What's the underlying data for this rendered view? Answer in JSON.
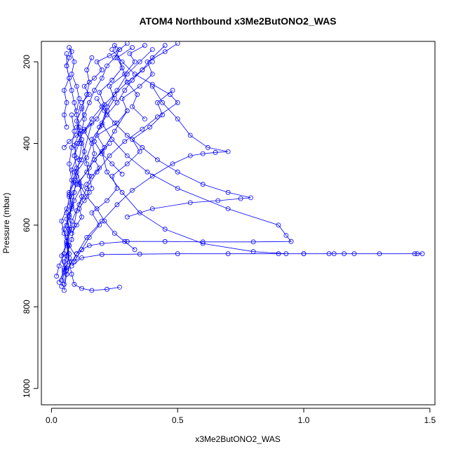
{
  "chart_data": {
    "type": "scatter",
    "title": "ATOM4 Northbound x3Me2ButONO2_WAS",
    "xlabel": "x3Me2ButONO2_WAS",
    "ylabel": "Pressure (mbar)",
    "xlim": [
      -0.04,
      1.52
    ],
    "ylim": [
      1040,
      150
    ],
    "y_reversed": true,
    "x_ticks": [
      0.0,
      0.5,
      1.0,
      1.5
    ],
    "x_tick_labels": [
      "0.0",
      "0.5",
      "1.0",
      "1.5"
    ],
    "y_ticks": [
      200,
      400,
      600,
      800,
      1000
    ],
    "y_tick_labels": [
      "200",
      "400",
      "600",
      "800",
      "1000"
    ],
    "grid": false,
    "colors": {
      "series": "#0000ff",
      "axes": "#000000",
      "background": "#ffffff"
    },
    "series": [
      {
        "profile": 1,
        "x": [
          0.05,
          0.06,
          0.05,
          0.07,
          0.06,
          0.08,
          0.09,
          0.1,
          0.11,
          0.12,
          0.1,
          0.13,
          0.15,
          0.17,
          0.2,
          0.22,
          0.25,
          0.27,
          0.3
        ],
        "y": [
          760,
          720,
          690,
          650,
          600,
          560,
          520,
          480,
          440,
          400,
          360,
          330,
          300,
          270,
          240,
          210,
          190,
          170,
          155
        ]
      },
      {
        "profile": 2,
        "x": [
          0.04,
          0.05,
          0.07,
          0.06,
          0.08,
          0.07,
          0.09,
          0.12,
          0.1,
          0.14,
          0.16,
          0.13,
          0.18,
          0.21,
          0.19,
          0.24,
          0.28,
          0.26,
          0.32
        ],
        "y": [
          750,
          715,
          680,
          640,
          610,
          575,
          540,
          505,
          470,
          435,
          400,
          370,
          340,
          305,
          275,
          245,
          215,
          190,
          165
        ]
      },
      {
        "profile": 3,
        "x": [
          0.03,
          0.05,
          0.06,
          0.08,
          0.09,
          0.1,
          0.12,
          0.11,
          0.15,
          0.17,
          0.16,
          0.2,
          0.22,
          0.25,
          0.23,
          0.29,
          0.33,
          0.31,
          0.37
        ],
        "y": [
          740,
          710,
          675,
          635,
          600,
          565,
          530,
          495,
          460,
          425,
          390,
          355,
          320,
          290,
          260,
          230,
          200,
          180,
          160
        ]
      },
      {
        "profile": 4,
        "x": [
          0.06,
          0.08,
          0.1,
          0.12,
          0.15,
          0.2,
          0.3,
          0.45,
          0.6,
          0.8,
          0.95,
          0.93,
          0.9,
          0.7,
          0.5,
          0.38,
          0.3,
          0.24,
          0.2,
          0.22,
          0.26,
          0.3,
          0.35,
          0.4
        ],
        "y": [
          720,
          690,
          670,
          660,
          650,
          645,
          640,
          640,
          641,
          641,
          640,
          625,
          600,
          560,
          510,
          470,
          430,
          390,
          350,
          310,
          270,
          230,
          200,
          170
        ]
      },
      {
        "profile": 5,
        "x": [
          0.08,
          0.12,
          0.2,
          0.35,
          0.5,
          0.7,
          0.9,
          1.0,
          1.1,
          1.2,
          1.3,
          1.45,
          1.47,
          1.44,
          1.16,
          1.12,
          1.0,
          0.93,
          0.8,
          0.6,
          0.45,
          0.35,
          0.28,
          0.22,
          0.2,
          0.25,
          0.3
        ],
        "y": [
          700,
          680,
          672,
          671,
          670,
          670,
          670,
          670,
          670,
          670,
          670,
          670,
          670,
          670,
          670,
          670,
          670,
          670,
          665,
          645,
          610,
          570,
          520,
          470,
          420,
          370,
          320
        ]
      },
      {
        "profile": 6,
        "x": [
          0.1,
          0.07,
          0.05,
          0.04,
          0.06,
          0.08,
          0.1,
          0.14,
          0.17,
          0.21,
          0.18,
          0.26,
          0.3,
          0.28,
          0.35,
          0.4,
          0.38,
          0.45,
          0.5
        ],
        "y": [
          680,
          650,
          620,
          590,
          560,
          530,
          500,
          470,
          440,
          410,
          380,
          350,
          320,
          290,
          260,
          230,
          200,
          175,
          155
        ]
      },
      {
        "profile": 7,
        "x": [
          0.02,
          0.03,
          0.05,
          0.06,
          0.05,
          0.07,
          0.08,
          0.07,
          0.09,
          0.1,
          0.09,
          0.11,
          0.12,
          0.13,
          0.12,
          0.14,
          0.15,
          0.14,
          0.16
        ],
        "y": [
          725,
          700,
          670,
          640,
          610,
          580,
          550,
          520,
          490,
          460,
          430,
          400,
          370,
          340,
          310,
          280,
          250,
          220,
          190
        ]
      },
      {
        "profile": 8,
        "x": [
          0.27,
          0.22,
          0.16,
          0.12,
          0.09,
          0.08,
          0.07,
          0.06,
          0.07,
          0.06,
          0.07,
          0.08,
          0.07,
          0.08,
          0.09,
          0.08
        ],
        "y": [
          752,
          757,
          760,
          755,
          745,
          720,
          690,
          650,
          610,
          570,
          530,
          490,
          450,
          410,
          370,
          330
        ]
      },
      {
        "profile": 9,
        "x": [
          0.05,
          0.06,
          0.07,
          0.06,
          0.08,
          0.11,
          0.14,
          0.18,
          0.23,
          0.29,
          0.36,
          0.42,
          0.5,
          0.47,
          0.4,
          0.33,
          0.28,
          0.24
        ],
        "y": [
          745,
          705,
          670,
          630,
          590,
          550,
          510,
          470,
          430,
          395,
          365,
          335,
          300,
          280,
          255,
          230,
          200,
          170
        ]
      },
      {
        "profile": 10,
        "x": [
          0.06,
          0.1,
          0.14,
          0.2,
          0.26,
          0.32,
          0.4,
          0.48,
          0.55,
          0.6,
          0.65,
          0.7,
          0.62,
          0.55,
          0.5,
          0.44,
          0.4
        ],
        "y": [
          710,
          670,
          630,
          590,
          550,
          515,
          480,
          450,
          430,
          425,
          422,
          420,
          410,
          380,
          340,
          300,
          260
        ]
      },
      {
        "profile": 11,
        "x": [
          0.04,
          0.05,
          0.04,
          0.06,
          0.07,
          0.06,
          0.08,
          0.07,
          0.09,
          0.08,
          0.1,
          0.09,
          0.11,
          0.1,
          0.12
        ],
        "y": [
          735,
          705,
          675,
          645,
          615,
          585,
          555,
          525,
          495,
          465,
          435,
          405,
          375,
          345,
          315
        ]
      },
      {
        "profile": 12,
        "x": [
          0.09,
          0.12,
          0.15,
          0.19,
          0.16,
          0.22,
          0.26,
          0.24,
          0.3,
          0.35,
          0.32,
          0.39,
          0.44,
          0.42,
          0.48
        ],
        "y": [
          690,
          660,
          630,
          600,
          570,
          540,
          510,
          480,
          450,
          420,
          390,
          360,
          330,
          300,
          270
        ]
      },
      {
        "profile": 13,
        "x": [
          0.3,
          0.4,
          0.55,
          0.66,
          0.75,
          0.79,
          0.7,
          0.6,
          0.5,
          0.42,
          0.36,
          0.3,
          0.25,
          0.21,
          0.18
        ],
        "y": [
          580,
          560,
          545,
          540,
          535,
          533,
          520,
          500,
          470,
          440,
          410,
          380,
          350,
          320,
          290
        ]
      },
      {
        "profile": 14,
        "x": [
          0.06,
          0.05,
          0.06,
          0.05,
          0.07,
          0.06,
          0.07,
          0.08,
          0.07,
          0.09,
          0.08,
          0.1,
          0.11,
          0.1
        ],
        "y": [
          360,
          330,
          300,
          270,
          240,
          210,
          190,
          175,
          165,
          200,
          230,
          260,
          290,
          320
        ]
      },
      {
        "profile": 15,
        "x": [
          0.05,
          0.07,
          0.1,
          0.13,
          0.16,
          0.12,
          0.09,
          0.11,
          0.14,
          0.18,
          0.21,
          0.25,
          0.29,
          0.33
        ],
        "y": [
          410,
          395,
          380,
          365,
          350,
          440,
          470,
          500,
          530,
          560,
          590,
          620,
          640,
          660
        ]
      },
      {
        "profile": 16,
        "x": [
          0.12,
          0.15,
          0.13,
          0.17,
          0.2,
          0.18,
          0.23,
          0.27,
          0.25,
          0.3,
          0.34,
          0.32,
          0.37
        ],
        "y": [
          300,
          280,
          260,
          240,
          220,
          200,
          185,
          170,
          160,
          250,
          280,
          310,
          340
        ]
      },
      {
        "profile": 17,
        "x": [
          0.08,
          0.1,
          0.12,
          0.11,
          0.13,
          0.15,
          0.14,
          0.16,
          0.19,
          0.17,
          0.2,
          0.23
        ],
        "y": [
          620,
          600,
          580,
          560,
          540,
          520,
          500,
          480,
          460,
          440,
          420,
          400
        ]
      },
      {
        "profile": 18,
        "x": [
          0.06,
          0.06,
          0.07,
          0.08,
          0.09,
          0.1,
          0.11,
          0.12,
          0.13,
          0.14,
          0.15,
          0.16
        ],
        "y": [
          180,
          210,
          240,
          270,
          300,
          330,
          360,
          390,
          420,
          450,
          480,
          510
        ]
      },
      {
        "profile": 19,
        "x": [
          0.4,
          0.36,
          0.32,
          0.29,
          0.26,
          0.22,
          0.19,
          0.17,
          0.2,
          0.24,
          0.28
        ],
        "y": [
          200,
          220,
          245,
          270,
          300,
          330,
          360,
          395,
          425,
          450,
          475
        ]
      },
      {
        "profile": 20,
        "x": [
          0.45,
          0.4,
          0.36,
          0.3,
          0.25,
          0.2,
          0.16,
          0.13,
          0.1,
          0.09
        ],
        "y": [
          160,
          190,
          220,
          250,
          280,
          310,
          340,
          370,
          400,
          430
        ]
      }
    ]
  }
}
